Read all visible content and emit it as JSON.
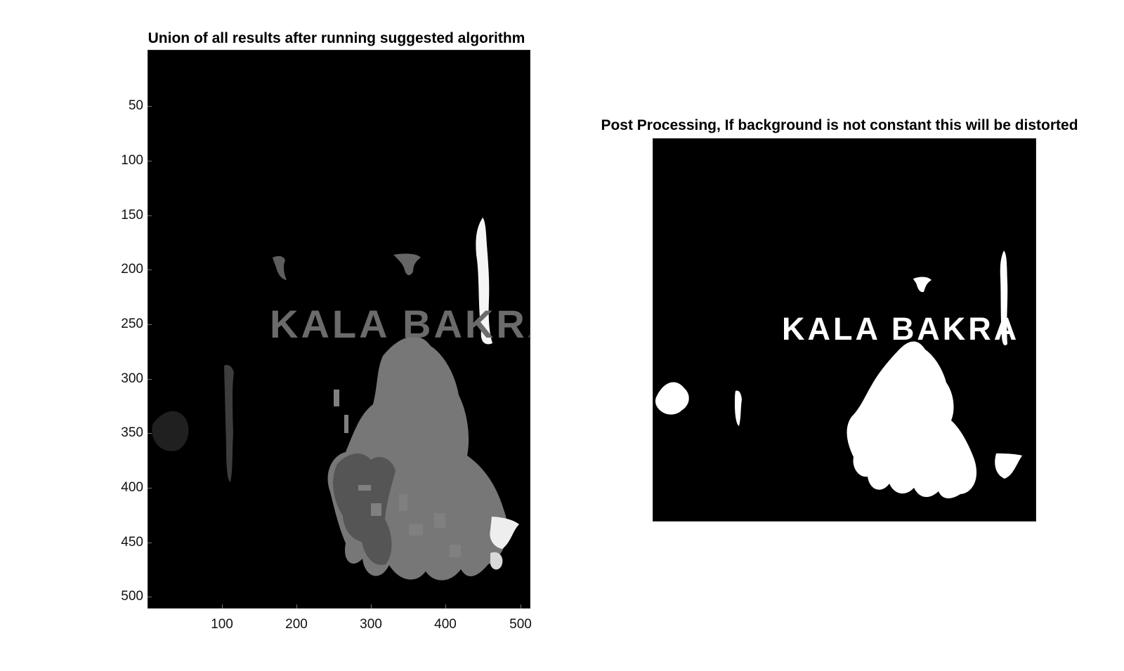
{
  "figure": {
    "left_panel": {
      "title": "Union of all results after running suggested algorithm",
      "image_label": "KALA BAKRA",
      "y_ticks": [
        "50",
        "100",
        "150",
        "200",
        "250",
        "300",
        "350",
        "400",
        "450",
        "500"
      ],
      "x_ticks": [
        "100",
        "200",
        "300",
        "400",
        "500"
      ]
    },
    "right_panel": {
      "title": "Post Processing, If background is not constant this will be distorted",
      "image_label": "KALA BAKRA"
    },
    "colors": {
      "figure_background": "#ffffff",
      "axes_background": "#000000",
      "left_text_gray": "#6b6b6b",
      "left_region_gray": "#767676",
      "right_foreground": "#ffffff"
    }
  }
}
